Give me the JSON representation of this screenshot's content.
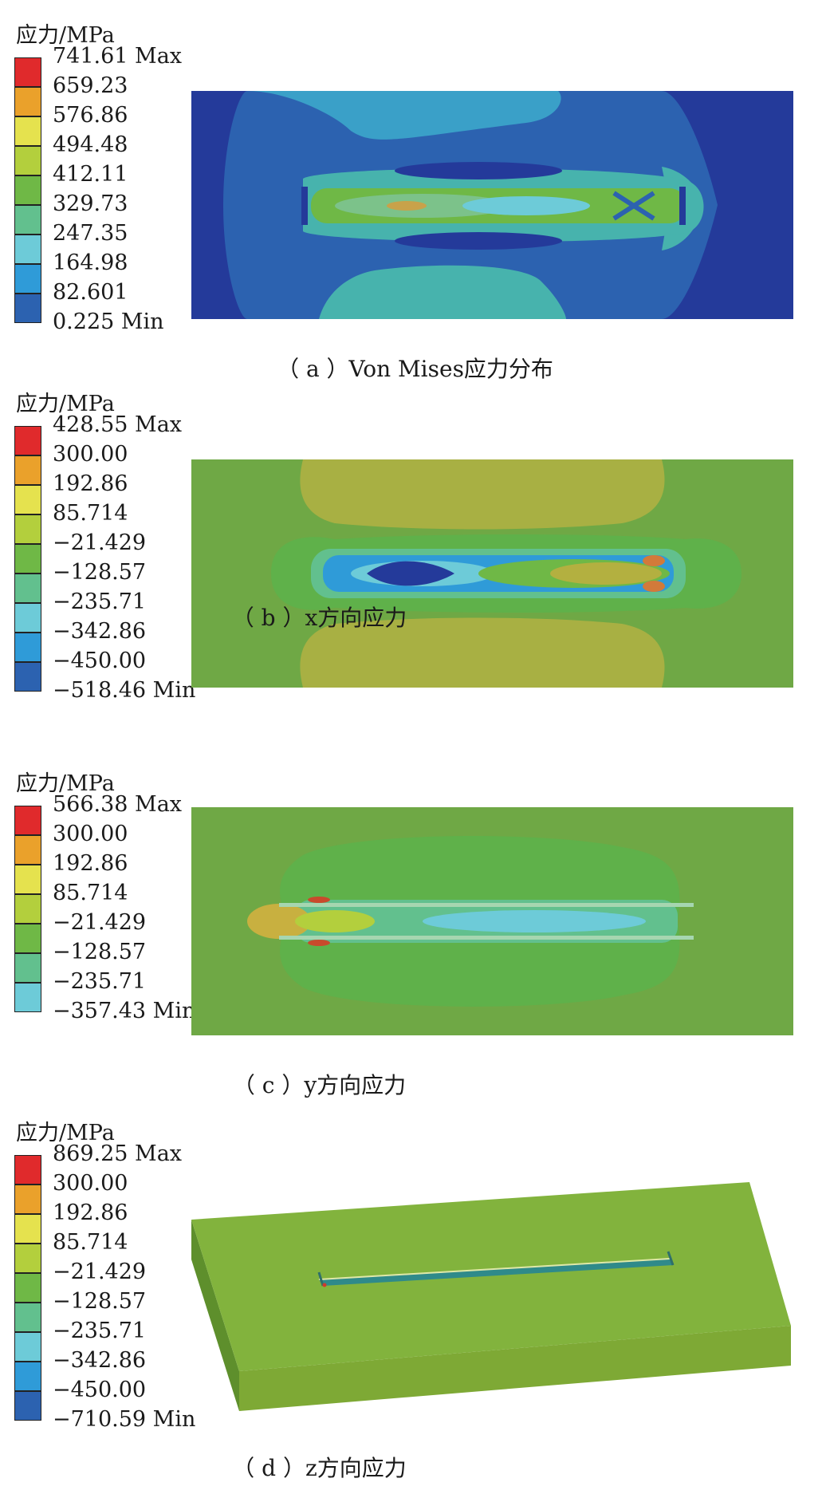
{
  "colors": {
    "c10": "#e02a2c",
    "c09": "#eaa12b",
    "c08": "#e5e24e",
    "c07": "#b3cf3d",
    "c06": "#6fb846",
    "c05": "#62c08e",
    "c04": "#6dcbd8",
    "c03": "#2f9bd8",
    "c02": "#2c62b0",
    "c01": "#243a9a"
  },
  "panels": [
    {
      "unit": "应力/MPa",
      "caption": "（ a ）Von Mises应力分布",
      "legend": [
        "741.61 Max",
        "659.23",
        "576.86",
        "494.48",
        "412.11",
        "329.73",
        "247.35",
        "164.98",
        "82.601",
        "0.225 Min"
      ],
      "swatches": [
        "#e02a2c",
        "#eaa12b",
        "#e5e24e",
        "#b3cf3d",
        "#6fb846",
        "#62c08e",
        "#6dcbd8",
        "#2f9bd8",
        "#2c62b0"
      ]
    },
    {
      "unit": "应力/MPa",
      "caption": "（ b ）x方向应力",
      "legend": [
        "428.55 Max",
        "300.00",
        "192.86",
        "85.714",
        "−21.429",
        "−128.57",
        "−235.71",
        "−342.86",
        "−450.00",
        "−518.46 Min"
      ],
      "swatches": [
        "#e02a2c",
        "#eaa12b",
        "#e5e24e",
        "#b3cf3d",
        "#6fb846",
        "#62c08e",
        "#6dcbd8",
        "#2f9bd8",
        "#2c62b0"
      ]
    },
    {
      "unit": "应力/MPa",
      "caption": "（ c ）y方向应力",
      "legend": [
        "566.38 Max",
        "300.00",
        "192.86",
        "85.714",
        "−21.429",
        "−128.57",
        "−235.71",
        "−357.43 Min"
      ],
      "swatches": [
        "#e02a2c",
        "#eaa12b",
        "#e5e24e",
        "#b3cf3d",
        "#6fb846",
        "#62c08e",
        "#6dcbd8"
      ]
    },
    {
      "unit": "应力/MPa",
      "caption": "（ d ）z方向应力",
      "legend": [
        "869.25 Max",
        "300.00",
        "192.86",
        "85.714",
        "−21.429",
        "−128.57",
        "−235.71",
        "−342.86",
        "−450.00",
        "−710.59 Min"
      ],
      "swatches": [
        "#e02a2c",
        "#eaa12b",
        "#e5e24e",
        "#b3cf3d",
        "#6fb846",
        "#62c08e",
        "#6dcbd8",
        "#2f9bd8",
        "#2c62b0"
      ]
    }
  ]
}
